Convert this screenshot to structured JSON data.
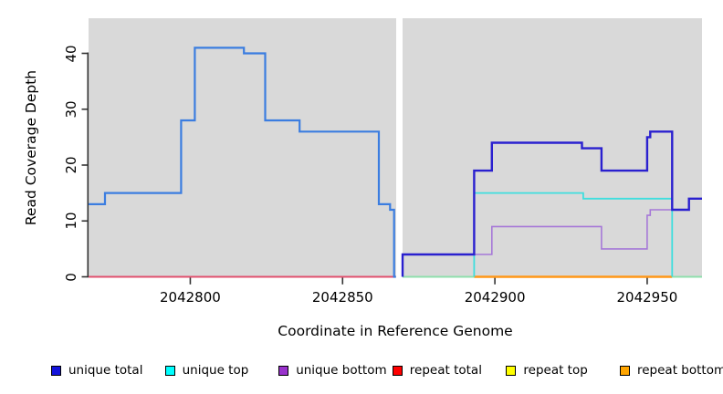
{
  "y_axis": {
    "title": "Read Coverage Depth",
    "ticks": [
      "0",
      "10",
      "20",
      "30",
      "40"
    ],
    "tick_values": [
      0,
      10,
      20,
      30,
      40
    ],
    "range": [
      0,
      46.3
    ]
  },
  "x_axis": {
    "title": "Coordinate in Reference Genome",
    "ticks": [
      "2042800",
      "2042850",
      "2042900",
      "2042950"
    ],
    "tick_values": [
      2042800,
      2042850,
      2042900,
      2042950
    ],
    "range": [
      2042766.6,
      2042968.0
    ]
  },
  "chart_data": {
    "type": "line",
    "style": "step",
    "plot_background": "#d9d9d9",
    "gap": {
      "x1": 2042867.5,
      "x2": 2042869.7
    },
    "series": [
      {
        "name": "unique-bottom",
        "color": "#a678d8",
        "width": 1.6,
        "start_from_zero": false,
        "end_to_zero": false,
        "steps": [
          [
            2042893.2,
            4
          ],
          [
            2042899,
            9
          ],
          [
            2042935,
            5
          ],
          [
            2042950,
            11
          ],
          [
            2042951,
            12
          ]
        ],
        "end": 2042957.8
      },
      {
        "name": "unique-top",
        "color": "#3fdede",
        "width": 1.8,
        "start_from_zero": true,
        "end_to_zero": true,
        "steps": [
          [
            2042893.2,
            15
          ],
          [
            2042929,
            14
          ]
        ],
        "end": 2042958.2
      },
      {
        "name": "unique-total-left",
        "color": "#3b7de0",
        "width": 2.2,
        "start_from_zero": false,
        "end_to_zero": false,
        "steps": [
          [
            2042766.6,
            13
          ],
          [
            2042772,
            15
          ],
          [
            2042797,
            28
          ],
          [
            2042801.5,
            41
          ],
          [
            2042817.6,
            40
          ],
          [
            2042824.6,
            28
          ],
          [
            2042835.9,
            26
          ],
          [
            2042861.9,
            13
          ],
          [
            2042865.6,
            12
          ],
          [
            2042866.9,
            0
          ]
        ],
        "end": 2042867.5
      },
      {
        "name": "unique-total-right",
        "color": "#2a20cf",
        "width": 2.4,
        "start_from_zero": true,
        "end_to_zero": false,
        "steps": [
          [
            2042869.7,
            4
          ],
          [
            2042893.2,
            19
          ],
          [
            2042899,
            24
          ],
          [
            2042928.6,
            23
          ],
          [
            2042935,
            19
          ],
          [
            2042950,
            25
          ],
          [
            2042951,
            26
          ],
          [
            2042958.2,
            12
          ],
          [
            2042963.7,
            14
          ]
        ],
        "end": 2042968.0
      }
    ],
    "zero_line_segments": [
      {
        "name": "repeat-total",
        "color": "#e0506e",
        "width": 2.0,
        "x1": 2042766.6,
        "x2": 2042867.5
      },
      {
        "name": "unique-top-at-zero",
        "color": "#8fdfad",
        "width": 2.0,
        "x1": 2042869.7,
        "x2": 2042893.2
      },
      {
        "name": "repeat-bottom",
        "color": "#ff9718",
        "width": 2.4,
        "x1": 2042893.2,
        "x2": 2042958.2
      },
      {
        "name": "unique-top-at-zero",
        "color": "#8fdfad",
        "width": 2.0,
        "x1": 2042958.2,
        "x2": 2042968.0
      }
    ]
  },
  "legend": {
    "items": [
      {
        "label": "unique total",
        "color": "#1414dc"
      },
      {
        "label": "unique top",
        "color": "#00ffff"
      },
      {
        "label": "unique bottom",
        "color": "#9932cc"
      },
      {
        "label": "repeat total",
        "color": "#ff0000"
      },
      {
        "label": "repeat top",
        "color": "#ffff00"
      },
      {
        "label": "repeat bottom",
        "color": "#ffa500"
      }
    ]
  }
}
